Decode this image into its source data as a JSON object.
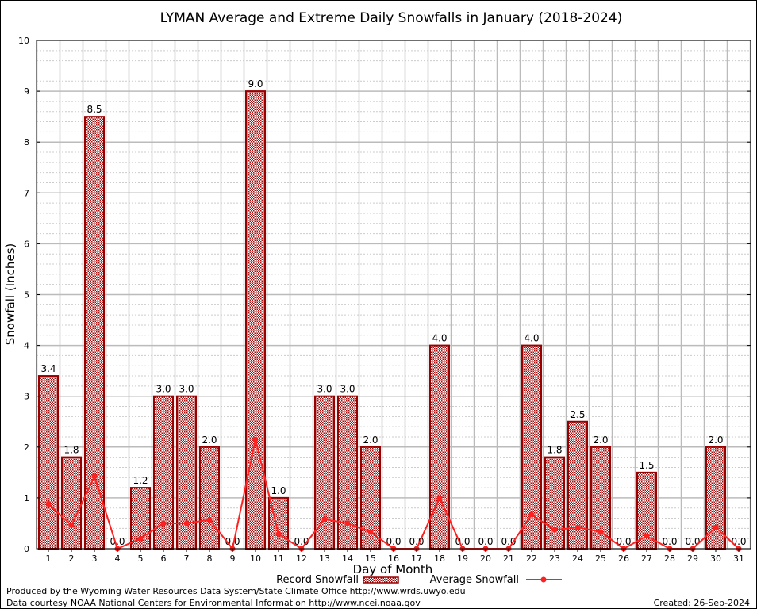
{
  "chart_data": {
    "type": "bar",
    "title": "LYMAN Average and Extreme Daily Snowfalls in January (2018-2024)",
    "xlabel": "Day of Month",
    "ylabel": "Snowfall (Inches)",
    "ylim": [
      0,
      10
    ],
    "yticks": [
      "0",
      "1",
      "2",
      "3",
      "4",
      "5",
      "6",
      "7",
      "8",
      "9",
      "10"
    ],
    "categories": [
      "1",
      "2",
      "3",
      "4",
      "5",
      "6",
      "7",
      "8",
      "9",
      "10",
      "11",
      "12",
      "13",
      "14",
      "15",
      "16",
      "17",
      "18",
      "19",
      "20",
      "21",
      "22",
      "23",
      "24",
      "25",
      "26",
      "27",
      "28",
      "29",
      "30",
      "31"
    ],
    "grid": true,
    "legend_position": "bottom",
    "series": [
      {
        "name": "Record Snowfall",
        "type": "bar",
        "color": "#990000",
        "values": [
          3.4,
          1.8,
          8.5,
          0.0,
          1.2,
          3.0,
          3.0,
          2.0,
          0.0,
          9.0,
          1.0,
          0.0,
          3.0,
          3.0,
          2.0,
          0.0,
          0.0,
          4.0,
          0.0,
          0.0,
          0.0,
          4.0,
          1.8,
          2.5,
          2.0,
          0.0,
          1.5,
          0.0,
          0.0,
          2.0,
          0.0
        ],
        "labels": [
          "3.4",
          "1.8",
          "8.5",
          "0.0",
          "1.2",
          "3.0",
          "3.0",
          "2.0",
          "0.0",
          "9.0",
          "1.0",
          "0.0",
          "3.0",
          "3.0",
          "2.0",
          "0.0",
          "0.0",
          "4.0",
          "0.0",
          "0.0",
          "0.0",
          "4.0",
          "1.8",
          "2.5",
          "2.0",
          "0.0",
          "1.5",
          "0.0",
          "0.0",
          "2.0",
          "0.0"
        ]
      },
      {
        "name": "Average Snowfall",
        "type": "line",
        "color": "#ff2020",
        "values": [
          0.88,
          0.46,
          1.42,
          0.0,
          0.2,
          0.5,
          0.5,
          0.57,
          0.0,
          2.15,
          0.29,
          0.0,
          0.58,
          0.5,
          0.33,
          0.0,
          0.0,
          1.0,
          0.0,
          0.0,
          0.0,
          0.67,
          0.37,
          0.42,
          0.33,
          0.0,
          0.25,
          0.0,
          0.0,
          0.42,
          0.0
        ]
      }
    ]
  },
  "footer": {
    "produced_by": "Produced by the Wyoming Water Resources Data System/State Climate Office http://www.wrds.uwyo.edu",
    "data_courtesy": "Data courtesy NOAA National Centers for Environmental Information http://www.ncei.noaa.gov",
    "created": "Created: 26-Sep-2024"
  }
}
